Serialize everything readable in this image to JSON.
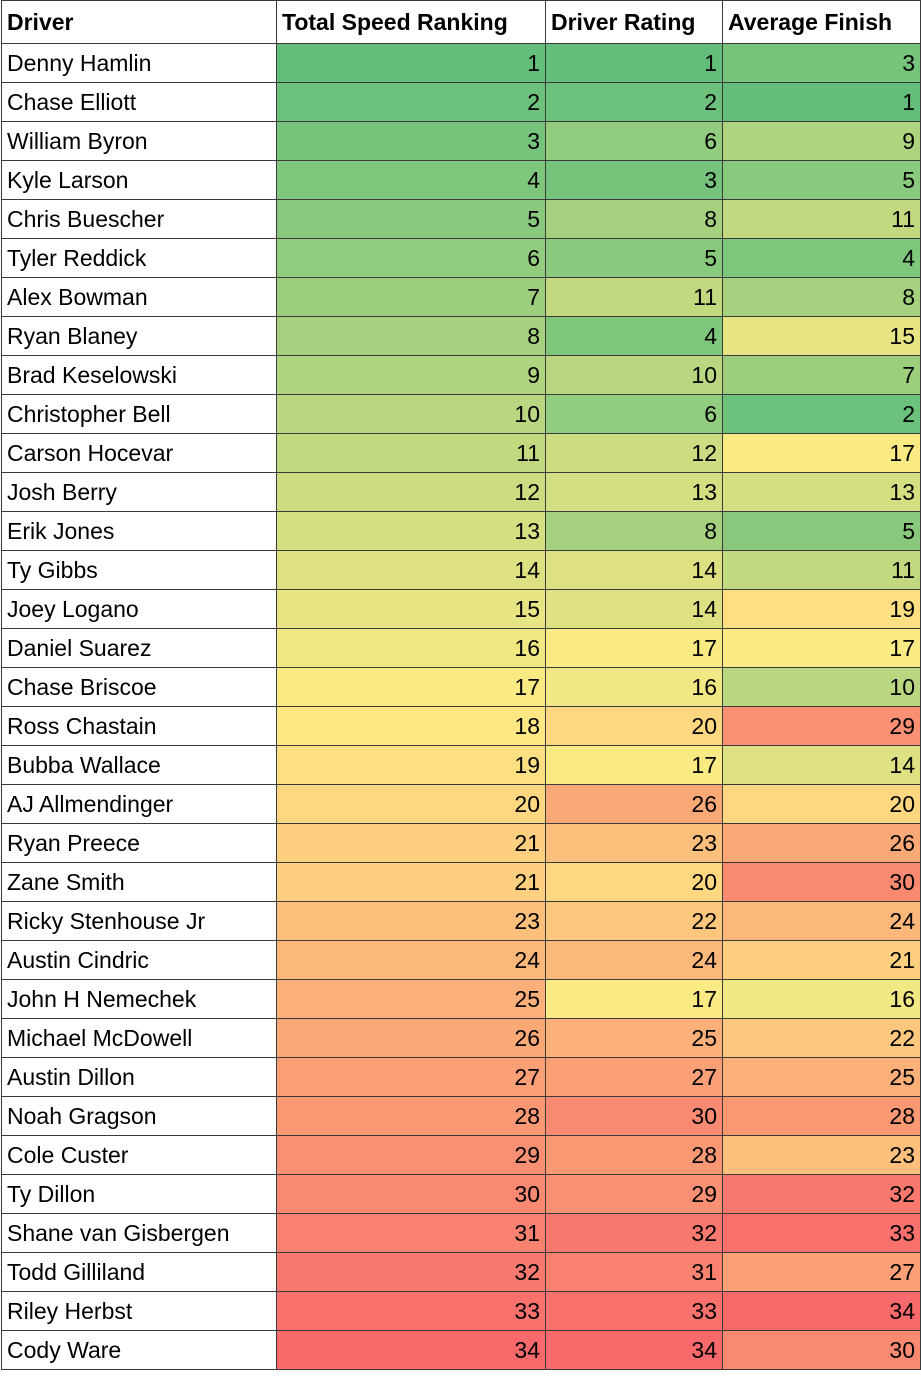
{
  "table": {
    "columns": [
      "Driver",
      "Total Speed Ranking",
      "Driver Rating",
      "Average Finish"
    ],
    "color_scale": [
      "#63be7b",
      "#ffeb84",
      "#f8696b"
    ],
    "rows": [
      [
        "Denny Hamlin",
        1,
        1,
        3
      ],
      [
        "Chase Elliott",
        2,
        2,
        1
      ],
      [
        "William Byron",
        3,
        6,
        9
      ],
      [
        "Kyle Larson",
        4,
        3,
        5
      ],
      [
        "Chris Buescher",
        5,
        8,
        11
      ],
      [
        "Tyler Reddick",
        6,
        5,
        4
      ],
      [
        "Alex Bowman",
        7,
        11,
        8
      ],
      [
        "Ryan Blaney",
        8,
        4,
        15
      ],
      [
        "Brad Keselowski",
        9,
        10,
        7
      ],
      [
        "Christopher Bell",
        10,
        6,
        2
      ],
      [
        "Carson Hocevar",
        11,
        12,
        17
      ],
      [
        "Josh Berry",
        12,
        13,
        13
      ],
      [
        "Erik Jones",
        13,
        8,
        5
      ],
      [
        "Ty Gibbs",
        14,
        14,
        11
      ],
      [
        "Joey Logano",
        15,
        14,
        19
      ],
      [
        "Daniel Suarez",
        16,
        17,
        17
      ],
      [
        "Chase Briscoe",
        17,
        16,
        10
      ],
      [
        "Ross Chastain",
        18,
        20,
        29
      ],
      [
        "Bubba Wallace",
        19,
        17,
        14
      ],
      [
        "AJ Allmendinger",
        20,
        26,
        20
      ],
      [
        "Ryan Preece",
        21,
        23,
        26
      ],
      [
        "Zane Smith",
        21,
        20,
        30
      ],
      [
        "Ricky Stenhouse Jr",
        23,
        22,
        24
      ],
      [
        "Austin Cindric",
        24,
        24,
        21
      ],
      [
        "John H Nemechek",
        25,
        17,
        16
      ],
      [
        "Michael McDowell",
        26,
        25,
        22
      ],
      [
        "Austin Dillon",
        27,
        27,
        25
      ],
      [
        "Noah Gragson",
        28,
        30,
        28
      ],
      [
        "Cole Custer",
        29,
        28,
        23
      ],
      [
        "Ty Dillon",
        30,
        29,
        32
      ],
      [
        "Shane van Gisbergen",
        31,
        32,
        33
      ],
      [
        "Todd Gilliland",
        32,
        31,
        27
      ],
      [
        "Riley Herbst",
        33,
        33,
        34
      ],
      [
        "Cody Ware",
        34,
        34,
        30
      ]
    ]
  }
}
